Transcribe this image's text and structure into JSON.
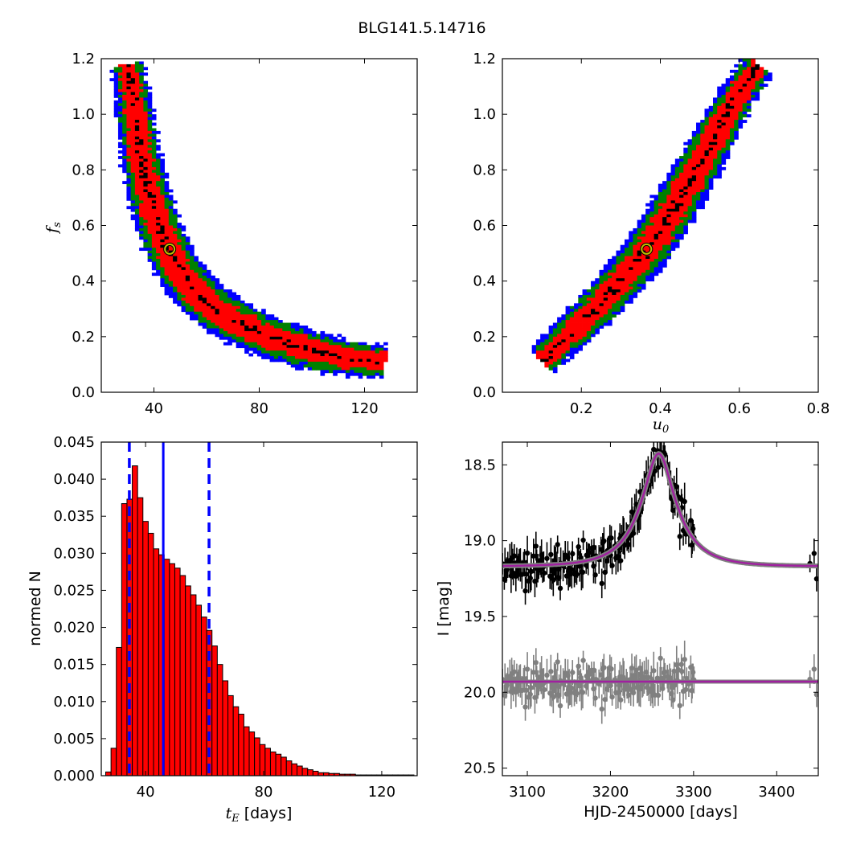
{
  "figure_title": "BLG141.5.14716",
  "chart_data": [
    {
      "type": "heatmap",
      "panel": "tE-fs posterior",
      "xlabel": "",
      "ylabel": "f_s",
      "ylabel_main": "f",
      "ylabel_sub": "s",
      "xlim": [
        20,
        140
      ],
      "ylim": [
        0.0,
        1.2
      ],
      "xticks": [
        "40",
        "80",
        "120"
      ],
      "yticks": [
        "0.0",
        "0.2",
        "0.4",
        "0.6",
        "0.8",
        "1.0",
        "1.2"
      ],
      "xtick_values": [
        40,
        80,
        120
      ],
      "ytick_values": [
        0.0,
        0.2,
        0.4,
        0.6,
        0.8,
        1.0,
        1.2
      ],
      "levels": [
        {
          "color": "#0000ff",
          "halfwidth_frac": 0.3
        },
        {
          "color": "#008000",
          "halfwidth_frac": 0.24
        },
        {
          "color": "#ff0000",
          "halfwidth_frac": 0.16
        },
        {
          "color": "#000000",
          "halfwidth_frac": 0.035
        }
      ],
      "ridge": [
        [
          30,
          1.18
        ],
        [
          33,
          1.0
        ],
        [
          35,
          0.85
        ],
        [
          38,
          0.72
        ],
        [
          41,
          0.62
        ],
        [
          45,
          0.52
        ],
        [
          50,
          0.43
        ],
        [
          56,
          0.36
        ],
        [
          62,
          0.31
        ],
        [
          70,
          0.26
        ],
        [
          80,
          0.21
        ],
        [
          90,
          0.18
        ],
        [
          100,
          0.15
        ],
        [
          110,
          0.13
        ],
        [
          120,
          0.115
        ],
        [
          128,
          0.11
        ]
      ],
      "best_fit": {
        "x": 46,
        "y": 0.515,
        "color": "#bfbf00"
      }
    },
    {
      "type": "heatmap",
      "panel": "u0-fs posterior",
      "xlabel": "u_0",
      "xlabel_main": "u",
      "xlabel_sub": "0",
      "ylabel": "",
      "xlim": [
        0.0,
        0.8
      ],
      "ylim": [
        0.0,
        1.2
      ],
      "xticks": [
        "0.2",
        "0.4",
        "0.6",
        "0.8"
      ],
      "yticks": [
        "0.0",
        "0.2",
        "0.4",
        "0.6",
        "0.8",
        "1.0",
        "1.2"
      ],
      "xtick_values": [
        0.2,
        0.4,
        0.6,
        0.8
      ],
      "ytick_values": [
        0.0,
        0.2,
        0.4,
        0.6,
        0.8,
        1.0,
        1.2
      ],
      "levels": [
        {
          "color": "#0000ff",
          "halfwidth_frac": 0.3
        },
        {
          "color": "#008000",
          "halfwidth_frac": 0.24
        },
        {
          "color": "#ff0000",
          "halfwidth_frac": 0.16
        },
        {
          "color": "#000000",
          "halfwidth_frac": 0.035
        }
      ],
      "ridge": [
        [
          0.1,
          0.11
        ],
        [
          0.15,
          0.18
        ],
        [
          0.2,
          0.25
        ],
        [
          0.25,
          0.32
        ],
        [
          0.3,
          0.4
        ],
        [
          0.35,
          0.48
        ],
        [
          0.4,
          0.58
        ],
        [
          0.45,
          0.7
        ],
        [
          0.5,
          0.82
        ],
        [
          0.55,
          0.95
        ],
        [
          0.6,
          1.08
        ],
        [
          0.65,
          1.18
        ]
      ],
      "best_fit": {
        "x": 0.365,
        "y": 0.515,
        "color": "#bfbf00"
      }
    },
    {
      "type": "bar",
      "panel": "tE histogram",
      "xlabel": "t_E  [days]",
      "xlabel_main": "t",
      "xlabel_sub": "E",
      "xlabel_rest": "  [days]",
      "ylabel": "normed N",
      "xlim": [
        25,
        132
      ],
      "ylim": [
        0.0,
        0.045
      ],
      "xticks": [
        "40",
        "80",
        "120"
      ],
      "yticks": [
        "0.000",
        "0.005",
        "0.010",
        "0.015",
        "0.020",
        "0.025",
        "0.030",
        "0.035",
        "0.040",
        "0.045"
      ],
      "xtick_values": [
        40,
        80,
        120
      ],
      "ytick_values": [
        0.0,
        0.005,
        0.01,
        0.015,
        0.02,
        0.025,
        0.03,
        0.035,
        0.04,
        0.045
      ],
      "bin_start": 26.5,
      "bin_width": 1.8,
      "values": [
        0.0005,
        0.0037,
        0.0173,
        0.0367,
        0.0373,
        0.0418,
        0.0375,
        0.0343,
        0.0327,
        0.0306,
        0.0298,
        0.0292,
        0.0286,
        0.028,
        0.027,
        0.0256,
        0.0244,
        0.023,
        0.0214,
        0.0196,
        0.0175,
        0.015,
        0.0128,
        0.0108,
        0.0093,
        0.0083,
        0.0066,
        0.0059,
        0.0051,
        0.0042,
        0.0037,
        0.0032,
        0.0029,
        0.0025,
        0.002,
        0.0016,
        0.0013,
        0.001,
        0.0008,
        0.0006,
        0.0004,
        0.0004,
        0.0003,
        0.0003,
        0.0002,
        0.0002,
        0.0002,
        0.0001,
        0.0001,
        0.0001,
        0.0001,
        0.0001,
        0.0001,
        0.0001,
        0.0001,
        0.0001,
        0.0001,
        0.0001
      ],
      "bar_color": "#ff0000",
      "median_line": {
        "x": 46,
        "color": "#0000ff"
      },
      "interval_lines": {
        "x": [
          34.5,
          61.5
        ],
        "color": "#0000ff"
      }
    },
    {
      "type": "scatter",
      "panel": "light curve",
      "xlabel": "HJD-2450000 [days]",
      "ylabel": "I [mag]",
      "xlim": [
        3070,
        3450
      ],
      "ylim": [
        20.55,
        18.35
      ],
      "y_inverted": true,
      "xticks": [
        "3100",
        "3200",
        "3300",
        "3400"
      ],
      "yticks": [
        "18.5",
        "19.0",
        "19.5",
        "20.0",
        "20.5"
      ],
      "xtick_values": [
        3100,
        3200,
        3300,
        3400
      ],
      "ytick_values": [
        18.5,
        19.0,
        19.5,
        20.0,
        20.5
      ],
      "model": {
        "t0": 3258,
        "u0": 0.36,
        "tE": 46,
        "fs": 0.515,
        "baseline": 19.17,
        "residual_level": 19.93,
        "color": "#a020a0"
      },
      "data_series": {
        "name": "",
        "color": "#000000",
        "scatter_mag": 0.085,
        "error_mag": 0.09
      },
      "residual_series": {
        "name": "",
        "color": "#808080",
        "scatter_mag": 0.085,
        "error_mag": 0.09
      },
      "cluster_start": 3070,
      "cluster_end": 3300,
      "cluster_step": 1.0,
      "late_epochs": [
        3440,
        3445,
        3448
      ]
    }
  ]
}
